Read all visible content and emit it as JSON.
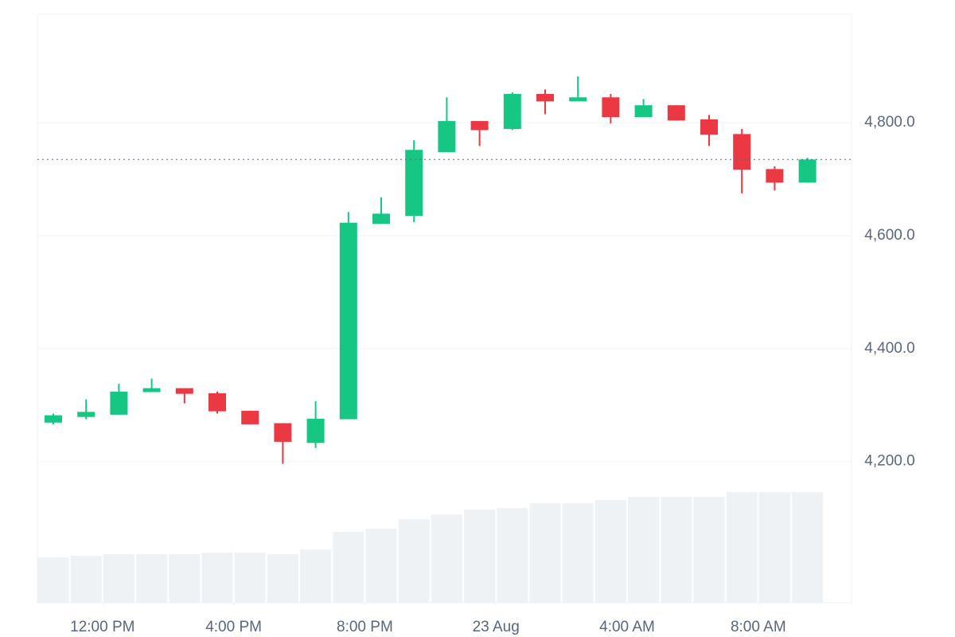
{
  "chart_data": {
    "type": "candlestick",
    "open": [
      4269,
      4279,
      4283,
      4323,
      4330,
      4321,
      4290,
      4268,
      4233,
      4275,
      4621,
      4635,
      4748,
      4803,
      4789,
      4851,
      4838,
      4845,
      4810,
      4831,
      4806,
      4780,
      4718,
      4694
    ],
    "high": [
      4285,
      4310,
      4338,
      4347,
      4330,
      4324,
      4290,
      4268,
      4307,
      4642,
      4668,
      4769,
      4845,
      4803,
      4854,
      4859,
      4882,
      4851,
      4842,
      4831,
      4814,
      4789,
      4723,
      4738
    ],
    "low": [
      4266,
      4275,
      4283,
      4323,
      4303,
      4285,
      4266,
      4196,
      4224,
      4275,
      4621,
      4624,
      4748,
      4759,
      4787,
      4815,
      4838,
      4799,
      4810,
      4804,
      4759,
      4675,
      4680,
      4694
    ],
    "close": [
      4282,
      4288,
      4324,
      4330,
      4320,
      4289,
      4266,
      4235,
      4276,
      4623,
      4639,
      4752,
      4803,
      4787,
      4851,
      4838,
      4845,
      4810,
      4831,
      4804,
      4779,
      4717,
      4694,
      4735
    ],
    "volume": [
      57,
      59,
      61,
      61,
      61,
      63,
      63,
      61,
      67,
      89,
      93,
      105,
      111,
      117,
      119,
      125,
      125,
      129,
      133,
      133,
      133,
      139,
      139,
      139
    ],
    "up_color": "#16c784",
    "down_color": "#ea3943",
    "volume_color": "#eff2f5",
    "ylim": [
      3950,
      4992
    ],
    "yticks": [
      {
        "value": 4200,
        "label": "4,200.0"
      },
      {
        "value": 4400,
        "label": "4,400.0"
      },
      {
        "value": 4600,
        "label": "4,600.0"
      },
      {
        "value": 4800,
        "label": "4,800.0"
      }
    ],
    "xticks": [
      {
        "value": 1.5,
        "label": "12:00 PM"
      },
      {
        "value": 5.5,
        "label": "4:00 PM"
      },
      {
        "value": 9.5,
        "label": "8:00 PM"
      },
      {
        "value": 13.5,
        "label": "23 Aug"
      },
      {
        "value": 17.5,
        "label": "4:00 AM"
      },
      {
        "value": 21.5,
        "label": "8:00 AM"
      }
    ],
    "grid": true
  }
}
